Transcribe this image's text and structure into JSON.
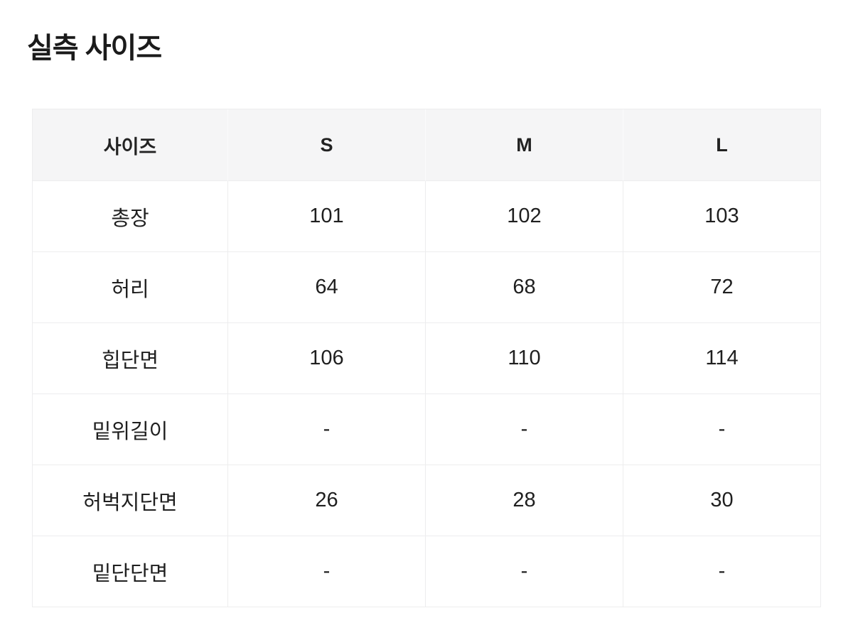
{
  "page": {
    "title": "실측 사이즈"
  },
  "size_table": {
    "columns": [
      "사이즈",
      "S",
      "M",
      "L"
    ],
    "rows": [
      {
        "label": "총장",
        "values": [
          "101",
          "102",
          "103"
        ]
      },
      {
        "label": "허리",
        "values": [
          "64",
          "68",
          "72"
        ]
      },
      {
        "label": "힙단면",
        "values": [
          "106",
          "110",
          "114"
        ]
      },
      {
        "label": "밑위길이",
        "values": [
          "-",
          "-",
          "-"
        ]
      },
      {
        "label": "허벅지단면",
        "values": [
          "26",
          "28",
          "30"
        ]
      },
      {
        "label": "밑단단면",
        "values": [
          "-",
          "-",
          "-"
        ]
      }
    ],
    "colors": {
      "header_bg": "#f5f5f6",
      "border": "#ededee",
      "text": "#1f1f1f",
      "title_text": "#1b1b1b"
    }
  }
}
